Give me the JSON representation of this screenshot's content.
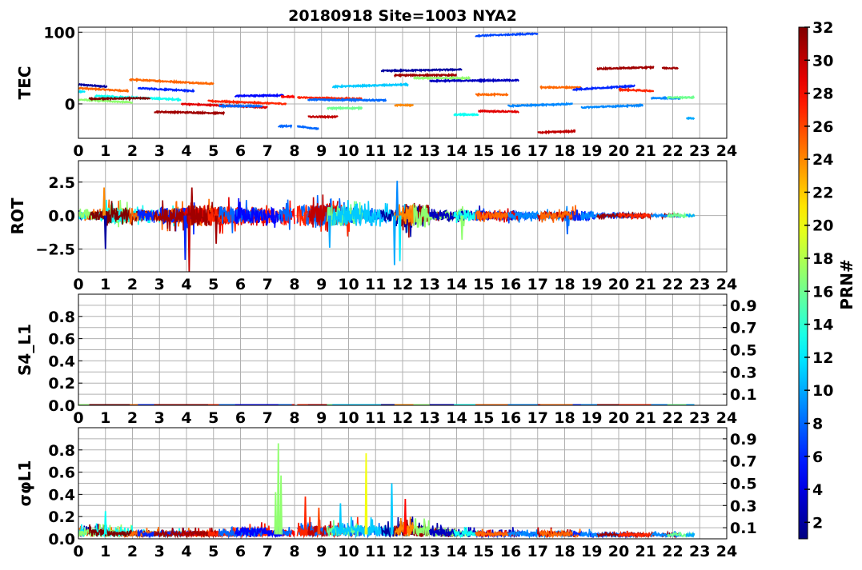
{
  "chart_data": {
    "title": "20180918 Site=1003 NYA2",
    "type": "line",
    "x_range": [
      0,
      24
    ],
    "x_ticks": [
      "0",
      "1",
      "2",
      "3",
      "4",
      "5",
      "6",
      "7",
      "8",
      "9",
      "10",
      "11",
      "12",
      "13",
      "14",
      "15",
      "16",
      "17",
      "18",
      "19",
      "20",
      "21",
      "22",
      "23",
      "24"
    ],
    "grid": true,
    "colorbar": {
      "label": "PRN#",
      "range": [
        1,
        32
      ],
      "ticks": [
        "2",
        "4",
        "6",
        "8",
        "10",
        "12",
        "14",
        "16",
        "18",
        "20",
        "22",
        "24",
        "26",
        "28",
        "30",
        "32"
      ],
      "colormap": "jet"
    },
    "panels": [
      {
        "ylabel": "TEC",
        "ylim": [
          -48,
          107
        ],
        "yticks": [
          {
            "v": 0,
            "label": "0"
          },
          {
            "v": 100,
            "label": "100"
          }
        ]
      },
      {
        "ylabel": "ROT",
        "ylim": [
          -4.2,
          4.1
        ],
        "yticks": [
          {
            "v": -2.5,
            "label": "−2.5"
          },
          {
            "v": 0,
            "label": "0.0"
          },
          {
            "v": 2.5,
            "label": "2.5"
          }
        ]
      },
      {
        "ylabel": "S4_L1",
        "ylim": [
          0,
          1.0
        ],
        "yticks": [
          {
            "v": 0,
            "label": "0.0"
          },
          {
            "v": 0.1,
            "label": "0.1"
          },
          {
            "v": 0.2,
            "label": "0.2"
          },
          {
            "v": 0.3,
            "label": "0.3"
          },
          {
            "v": 0.4,
            "label": "0.4"
          },
          {
            "v": 0.5,
            "label": "0.5"
          },
          {
            "v": 0.6,
            "label": "0.6"
          },
          {
            "v": 0.7,
            "label": "0.7"
          },
          {
            "v": 0.8,
            "label": "0.8"
          },
          {
            "v": 0.9,
            "label": "0.9"
          }
        ]
      },
      {
        "ylabel": "σφL1",
        "ylim": [
          0,
          1.0
        ],
        "yticks": [
          {
            "v": 0,
            "label": "0.0"
          },
          {
            "v": 0.1,
            "label": "0.1"
          },
          {
            "v": 0.2,
            "label": "0.2"
          },
          {
            "v": 0.3,
            "label": "0.3"
          },
          {
            "v": 0.4,
            "label": "0.4"
          },
          {
            "v": 0.5,
            "label": "0.5"
          },
          {
            "v": 0.6,
            "label": "0.6"
          },
          {
            "v": 0.7,
            "label": "0.7"
          },
          {
            "v": 0.8,
            "label": "0.8"
          },
          {
            "v": 0.9,
            "label": "0.9"
          }
        ]
      }
    ],
    "tec_arcs": [
      {
        "prn": 2,
        "t0": 0,
        "t1": 1.05,
        "v0": 27,
        "v1": 24
      },
      {
        "prn": 25,
        "t0": 0,
        "t1": 1.85,
        "v0": 22,
        "v1": 18
      },
      {
        "prn": 12,
        "t0": 0,
        "t1": 0.25,
        "v0": 17,
        "v1": 17
      },
      {
        "prn": 17,
        "t0": 0,
        "t1": 2,
        "v0": 6,
        "v1": 2
      },
      {
        "prn": 13,
        "t0": 0.6,
        "t1": 3.8,
        "v0": 11,
        "v1": 6
      },
      {
        "prn": 32,
        "t0": 0.4,
        "t1": 2.65,
        "v0": 7,
        "v1": 8
      },
      {
        "prn": 25,
        "t0": 1.9,
        "t1": 5,
        "v0": 34,
        "v1": 28
      },
      {
        "prn": 6,
        "t0": 2.2,
        "t1": 4.3,
        "v0": 22,
        "v1": 18
      },
      {
        "prn": 29,
        "t0": 3.8,
        "t1": 7,
        "v0": 0,
        "v1": -5
      },
      {
        "prn": 31,
        "t0": 2.8,
        "t1": 5.4,
        "v0": -11,
        "v1": -13
      },
      {
        "prn": 27,
        "t0": 4.8,
        "t1": 7.7,
        "v0": 4,
        "v1": 0
      },
      {
        "prn": 8,
        "t0": 5.2,
        "t1": 6.8,
        "v0": -3,
        "v1": -3
      },
      {
        "prn": 5,
        "t0": 5.8,
        "t1": 7.6,
        "v0": 11,
        "v1": 12
      },
      {
        "prn": 28,
        "t0": 7.5,
        "t1": 8,
        "v0": 10,
        "v1": 10
      },
      {
        "prn": 8,
        "t0": 7.4,
        "t1": 7.9,
        "v0": -31,
        "v1": -31
      },
      {
        "prn": 8,
        "t0": 8.1,
        "t1": 8.9,
        "v0": -31,
        "v1": -35
      },
      {
        "prn": 27,
        "t0": 8.1,
        "t1": 10.5,
        "v0": 9,
        "v1": 7
      },
      {
        "prn": 8,
        "t0": 8.5,
        "t1": 11.4,
        "v0": 6,
        "v1": 5
      },
      {
        "prn": 30,
        "t0": 8.5,
        "t1": 9.6,
        "v0": -18,
        "v1": -18
      },
      {
        "prn": 16,
        "t0": 9.2,
        "t1": 10.5,
        "v0": -6,
        "v1": -6
      },
      {
        "prn": 11,
        "t0": 9.4,
        "t1": 12.2,
        "v0": 24,
        "v1": 27
      },
      {
        "prn": 2,
        "t0": 11.2,
        "t1": 14.2,
        "v0": 46,
        "v1": 48
      },
      {
        "prn": 31,
        "t0": 11.7,
        "t1": 14,
        "v0": 40,
        "v1": 40
      },
      {
        "prn": 17,
        "t0": 12.4,
        "t1": 14.5,
        "v0": 36,
        "v1": 36
      },
      {
        "prn": 24,
        "t0": 11.7,
        "t1": 12.4,
        "v0": -2,
        "v1": -2
      },
      {
        "prn": 3,
        "t0": 13,
        "t1": 16.3,
        "v0": 32,
        "v1": 33
      },
      {
        "prn": 13,
        "t0": 13.9,
        "t1": 14.8,
        "v0": -15,
        "v1": -15
      },
      {
        "prn": 7,
        "t0": 14.7,
        "t1": 17,
        "v0": 95,
        "v1": 98
      },
      {
        "prn": 29,
        "t0": 14.8,
        "t1": 16.3,
        "v0": -10,
        "v1": -11
      },
      {
        "prn": 25,
        "t0": 14.7,
        "t1": 15.9,
        "v0": 13,
        "v1": 13
      },
      {
        "prn": 9,
        "t0": 15.9,
        "t1": 18.3,
        "v0": -3,
        "v1": 0
      },
      {
        "prn": 30,
        "t0": 17,
        "t1": 18.4,
        "v0": -40,
        "v1": -38
      },
      {
        "prn": 25,
        "t0": 17.1,
        "t1": 18.6,
        "v0": 23,
        "v1": 23
      },
      {
        "prn": 6,
        "t0": 18.3,
        "t1": 20.6,
        "v0": 20,
        "v1": 25
      },
      {
        "prn": 9,
        "t0": 18.6,
        "t1": 20.9,
        "v0": -5,
        "v1": -2
      },
      {
        "prn": 31,
        "t0": 19.2,
        "t1": 21.3,
        "v0": 49,
        "v1": 51
      },
      {
        "prn": 27,
        "t0": 20,
        "t1": 21.3,
        "v0": 20,
        "v1": 18
      },
      {
        "prn": 31,
        "t0": 21.6,
        "t1": 22.2,
        "v0": 50,
        "v1": 50
      },
      {
        "prn": 9,
        "t0": 21.2,
        "t1": 22.3,
        "v0": 8,
        "v1": 8
      },
      {
        "prn": 16,
        "t0": 21.8,
        "t1": 22.8,
        "v0": 9,
        "v1": 9
      },
      {
        "prn": 10,
        "t0": 22.5,
        "t1": 22.8,
        "v0": -20,
        "v1": -20
      }
    ],
    "rot_noise_by_hour": [
      0.3,
      0.6,
      0.4,
      0.6,
      0.8,
      0.7,
      0.6,
      0.6,
      0.8,
      0.8,
      0.6,
      0.5,
      0.9,
      0.3,
      0.4,
      0.3,
      0.3,
      0.3,
      0.4,
      0.15,
      0.15,
      0.1,
      0.1,
      0.05
    ],
    "rot_spikes": [
      {
        "t": 0.95,
        "v": 2.1,
        "prn": 24
      },
      {
        "t": 1.0,
        "v": -2.5,
        "prn": 2
      },
      {
        "t": 4.1,
        "v": -4.2,
        "prn": 30
      },
      {
        "t": 4.2,
        "v": 2.1,
        "prn": 31
      },
      {
        "t": 3.95,
        "v": -3.3,
        "prn": 6
      },
      {
        "t": 5.1,
        "v": -2.1,
        "prn": 31
      },
      {
        "t": 9.3,
        "v": -2.4,
        "prn": 10
      },
      {
        "t": 11.7,
        "v": -3.7,
        "prn": 10
      },
      {
        "t": 11.8,
        "v": 2.6,
        "prn": 9
      },
      {
        "t": 11.9,
        "v": -3.4,
        "prn": 12
      },
      {
        "t": 14.2,
        "v": -1.8,
        "prn": 17
      },
      {
        "t": 18.1,
        "v": -1.4,
        "prn": 8
      }
    ],
    "sigma_noise_by_hour": [
      0.07,
      0.06,
      0.05,
      0.05,
      0.05,
      0.05,
      0.08,
      0.06,
      0.1,
      0.1,
      0.1,
      0.1,
      0.1,
      0.07,
      0.05,
      0.04,
      0.05,
      0.05,
      0.04,
      0.03,
      0.03,
      0.03,
      0.03,
      0.02
    ],
    "sigma_spikes": [
      {
        "t": 1.0,
        "v": 0.25,
        "prn": 13
      },
      {
        "t": 7.4,
        "v": 0.86,
        "prn": 17
      },
      {
        "t": 7.5,
        "v": 0.57,
        "prn": 17
      },
      {
        "t": 7.3,
        "v": 0.42,
        "prn": 17
      },
      {
        "t": 8.4,
        "v": 0.38,
        "prn": 27
      },
      {
        "t": 10.65,
        "v": 0.77,
        "prn": 20
      },
      {
        "t": 11.6,
        "v": 0.5,
        "prn": 11
      },
      {
        "t": 12.1,
        "v": 0.36,
        "prn": 28
      },
      {
        "t": 9.7,
        "v": 0.32,
        "prn": 11
      },
      {
        "t": 8.9,
        "v": 0.28,
        "prn": 26
      }
    ],
    "s4_level": 0.005
  }
}
